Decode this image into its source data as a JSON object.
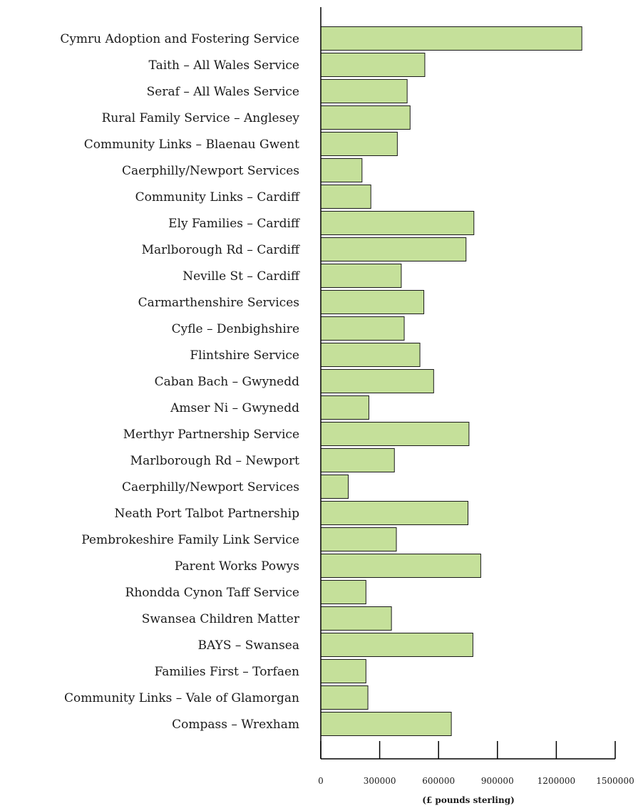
{
  "chart_data": {
    "type": "bar",
    "orientation": "horizontal",
    "categories": [
      "Cymru Adoption and Fostering Service",
      "Taith – All Wales Service",
      "Seraf – All Wales Service",
      "Rural Family Service – Anglesey",
      "Community Links – Blaenau Gwent",
      "Caerphilly/Newport Services",
      "Community Links – Cardiff",
      "Ely Families – Cardiff",
      "Marlborough Rd – Cardiff",
      "Neville St – Cardiff",
      "Carmarthenshire Services",
      "Cyfle – Denbighshire",
      "Flintshire Service",
      "Caban Bach – Gwynedd",
      "Amser Ni – Gwynedd",
      "Merthyr Partnership Service",
      "Marlborough Rd – Newport",
      "Caerphilly/Newport Services",
      "Neath Port Talbot Partnership",
      "Pembrokeshire Family Link Service",
      "Parent Works Powys",
      "Rhondda Cynon Taff Service",
      "Swansea Children Matter",
      "BAYS – Swansea",
      "Families First – Torfaen",
      "Community Links – Vale of Glamorgan",
      "Compass – Wrexham"
    ],
    "values": [
      1330000,
      530000,
      440000,
      455000,
      390000,
      210000,
      255000,
      780000,
      740000,
      410000,
      525000,
      425000,
      505000,
      575000,
      245000,
      755000,
      375000,
      140000,
      750000,
      385000,
      815000,
      230000,
      360000,
      775000,
      230000,
      240000,
      665000
    ],
    "xlim": [
      0,
      1500000
    ],
    "xticks": [
      "0",
      "300000",
      "600000",
      "900000",
      "1200000",
      "1500000"
    ],
    "xlabel": "(£ pounds sterling)",
    "ylabel": "",
    "title": "",
    "grid": false,
    "bar_color": "#c5e09a",
    "bar_edge_color": "#1a1a1a"
  }
}
